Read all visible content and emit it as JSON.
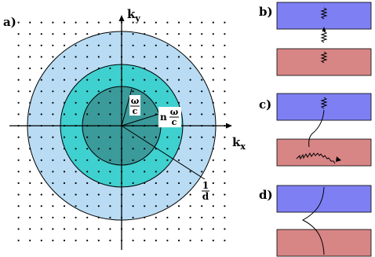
{
  "panel_a": {
    "label": "a)",
    "axis_x": "k",
    "axis_x_sub": "x",
    "axis_y": "k",
    "axis_y_sub": "y",
    "inner_frac_num": "ω",
    "inner_frac_den": "c",
    "middle_prefix": "n",
    "middle_frac_num": "ω",
    "middle_frac_den": "c",
    "outer_frac_num": "1",
    "outer_frac_den": "d"
  },
  "panel_b": {
    "label": "b)"
  },
  "panel_c": {
    "label": "c)"
  },
  "panel_d": {
    "label": "d)"
  },
  "colors": {
    "outer_disk": "#b9dcf4",
    "middle_disk": "#3fd0d0",
    "inner_disk": "#3b9a9a",
    "top_slab": "#7f7ff4",
    "bottom_slab": "#d88585"
  },
  "icons": [
    "wavy-photon-icon",
    "arrow-icon"
  ]
}
